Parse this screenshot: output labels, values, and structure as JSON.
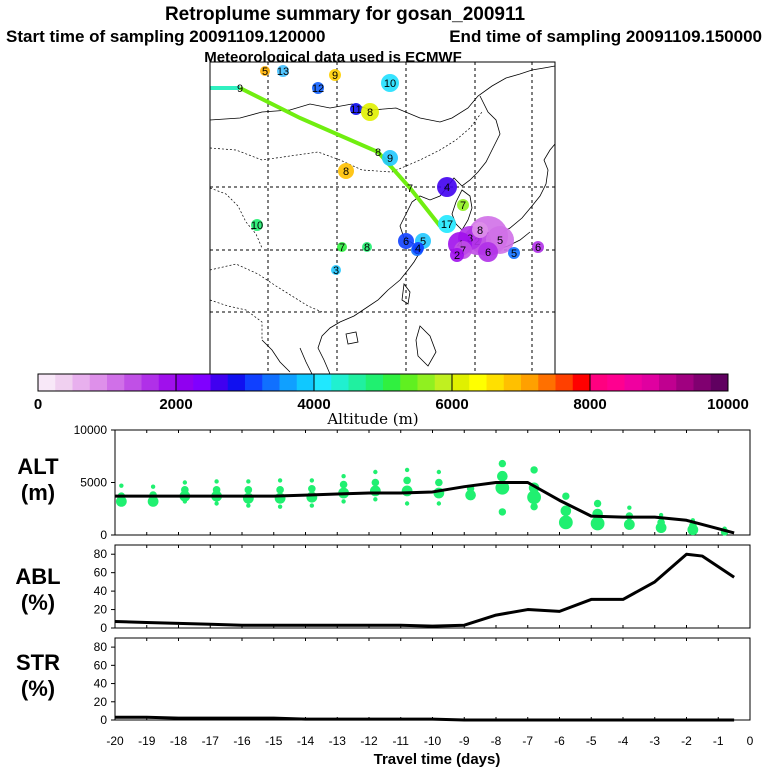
{
  "header": {
    "title": "Retroplume summary for gosan_200911",
    "start_label": "Start time of sampling 20091109.120000",
    "end_label": "End time of sampling 20091109.150000",
    "meteo_label": "Meteorological data used is ECMWF"
  },
  "colorbar": {
    "label": "Altitude (m)",
    "min": 0,
    "max": 10000,
    "ticks": [
      "0",
      "2000",
      "4000",
      "6000",
      "8000",
      "10000"
    ],
    "colors": [
      "#f8e8f8",
      "#f0d0f0",
      "#e8b0ee",
      "#de90ea",
      "#d070e8",
      "#c050e6",
      "#b030e8",
      "#a010ec",
      "#9000f0",
      "#8000ff",
      "#4000f0",
      "#1010f0",
      "#1040ff",
      "#1070ff",
      "#10a0ff",
      "#10c8ff",
      "#20e8ff",
      "#20f0d0",
      "#20f0a0",
      "#20f070",
      "#30f040",
      "#60f020",
      "#90f020",
      "#c0f020",
      "#e0f000",
      "#ffff00",
      "#ffe000",
      "#ffc000",
      "#ffa000",
      "#ff7000",
      "#ff4000",
      "#ff0000",
      "#ff0080",
      "#ff0090",
      "#f000a0",
      "#e000a0",
      "#c00090",
      "#a00080",
      "#800070",
      "#600060"
    ]
  },
  "map": {
    "trajectory_labels": [
      "9",
      "8",
      "7"
    ],
    "markers": [
      {
        "label": "5",
        "color": "#ffb000"
      },
      {
        "label": "13",
        "color": "#40c0ff"
      },
      {
        "label": "9",
        "color": "#ffd000"
      },
      {
        "label": "10",
        "color": "#20e0ff"
      },
      {
        "label": "12",
        "color": "#1060ff"
      },
      {
        "label": "11",
        "color": "#1010f0"
      },
      {
        "label": "8",
        "color": "#e0f000"
      },
      {
        "label": "9",
        "color": "#20c8ff"
      },
      {
        "label": "8",
        "color": "#ffc000"
      },
      {
        "label": "10",
        "color": "#20f070"
      },
      {
        "label": "7",
        "color": "#30f040"
      },
      {
        "label": "8",
        "color": "#20f070"
      },
      {
        "label": "6",
        "color": "#1070ff"
      },
      {
        "label": "5",
        "color": "#20c8ff"
      },
      {
        "label": "6",
        "color": "#1040ff"
      },
      {
        "label": "3",
        "color": "#20c8ff"
      },
      {
        "label": "4",
        "color": "#4000f0"
      },
      {
        "label": "7",
        "color": "#90f020"
      },
      {
        "label": "17",
        "color": "#20e8ff"
      },
      {
        "label": "1",
        "color": "#d070e8"
      },
      {
        "label": "2",
        "color": "#c050e6"
      },
      {
        "label": "3",
        "color": "#b030e8"
      },
      {
        "label": "4",
        "color": "#a010ec"
      },
      {
        "label": "5",
        "color": "#d070e8"
      },
      {
        "label": "6",
        "color": "#b030e8"
      },
      {
        "label": "7",
        "color": "#c050e6"
      },
      {
        "label": "8",
        "color": "#de90ea"
      },
      {
        "label": "2",
        "color": "#a010ec"
      },
      {
        "label": "4",
        "color": "#1040ff"
      },
      {
        "label": "5",
        "color": "#1070ff"
      },
      {
        "label": "6",
        "color": "#b030e8"
      }
    ]
  },
  "chart_data": [
    {
      "type": "line",
      "title": "ALT",
      "ylabel": "ALT (m)",
      "ylim": [
        0,
        10000
      ],
      "yticks": [
        "0",
        "5000",
        "10000"
      ],
      "x": [
        -20,
        -19,
        -18,
        -17,
        -16,
        -15,
        -14,
        -13,
        -12,
        -11,
        -10,
        -9,
        -8,
        -7,
        -6,
        -5,
        -4,
        -3,
        -2,
        -1,
        -0.5
      ],
      "values": [
        3700,
        3700,
        3700,
        3700,
        3700,
        3700,
        3800,
        3900,
        4000,
        4000,
        4100,
        4600,
        5000,
        5000,
        3300,
        1800,
        1700,
        1700,
        1400,
        600,
        200
      ],
      "scatter": [
        {
          "x": -19.8,
          "y": [
            4700,
            3700,
            3200
          ]
        },
        {
          "x": -18.8,
          "y": [
            4600,
            3800,
            3200
          ]
        },
        {
          "x": -17.8,
          "y": [
            5000,
            4300,
            3700,
            3200
          ]
        },
        {
          "x": -16.8,
          "y": [
            5100,
            4300,
            3700,
            3000
          ]
        },
        {
          "x": -15.8,
          "y": [
            5100,
            4300,
            3500,
            2800
          ]
        },
        {
          "x": -14.8,
          "y": [
            5200,
            4300,
            3500,
            2700
          ]
        },
        {
          "x": -13.8,
          "y": [
            5200,
            4400,
            3600,
            2800
          ]
        },
        {
          "x": -12.8,
          "y": [
            5600,
            4800,
            4000,
            3200
          ]
        },
        {
          "x": -11.8,
          "y": [
            6000,
            5000,
            4200,
            3400
          ]
        },
        {
          "x": -10.8,
          "y": [
            6200,
            5200,
            4200,
            3000
          ]
        },
        {
          "x": -9.8,
          "y": [
            6000,
            5000,
            4000,
            3000
          ]
        },
        {
          "x": -8.8,
          "y": [
            4400,
            3800
          ]
        },
        {
          "x": -7.8,
          "y": [
            6800,
            5600,
            4500,
            2200
          ]
        },
        {
          "x": -6.8,
          "y": [
            6200,
            4500,
            3600,
            2700
          ]
        },
        {
          "x": -5.8,
          "y": [
            3700,
            2300,
            1200
          ]
        },
        {
          "x": -4.8,
          "y": [
            3000,
            2000,
            1100
          ]
        },
        {
          "x": -3.8,
          "y": [
            2600,
            1800,
            1000
          ]
        },
        {
          "x": -2.8,
          "y": [
            1900,
            1200,
            700
          ]
        },
        {
          "x": -1.8,
          "y": [
            1400,
            900,
            500
          ]
        },
        {
          "x": -0.8,
          "y": [
            600,
            300
          ]
        }
      ]
    },
    {
      "type": "line",
      "title": "ABL",
      "ylabel": "ABL (%)",
      "ylim": [
        0,
        90
      ],
      "yticks": [
        "0",
        "20",
        "40",
        "60",
        "80"
      ],
      "x": [
        -20,
        -19,
        -18,
        -17,
        -16,
        -15,
        -14,
        -13,
        -12,
        -11,
        -10,
        -9,
        -8,
        -7,
        -6,
        -5,
        -4,
        -3,
        -2,
        -1.5,
        -0.5
      ],
      "values": [
        7,
        6,
        5,
        4,
        3,
        3,
        3,
        3,
        3,
        3,
        2,
        3,
        14,
        20,
        18,
        31,
        31,
        50,
        80,
        78,
        55
      ]
    },
    {
      "type": "line",
      "title": "STR",
      "ylabel": "STR (%)",
      "ylim": [
        0,
        90
      ],
      "yticks": [
        "0",
        "20",
        "40",
        "60",
        "80"
      ],
      "x": [
        -20,
        -19,
        -18,
        -17,
        -16,
        -15,
        -14,
        -13,
        -12,
        -11,
        -10,
        -9,
        -8,
        -7,
        -6,
        -5,
        -4,
        -3,
        -2,
        -1,
        -0.5
      ],
      "values": [
        3,
        3,
        2,
        2,
        2,
        2,
        1,
        1,
        1,
        1,
        1,
        0,
        0,
        0,
        0,
        0,
        0,
        0,
        0,
        0,
        0
      ]
    }
  ],
  "xaxis": {
    "label": "Travel time (days)",
    "ticks": [
      "-20",
      "-19",
      "-18",
      "-17",
      "-16",
      "-15",
      "-14",
      "-13",
      "-12",
      "-11",
      "-10",
      "-9",
      "-8",
      "-7",
      "-6",
      "-5",
      "-4",
      "-3",
      "-2",
      "-1",
      "0"
    ]
  },
  "panels": {
    "alt": {
      "name": "ALT",
      "unit": "(m)"
    },
    "abl": {
      "name": "ABL",
      "unit": "(%)"
    },
    "str": {
      "name": "STR",
      "unit": "(%)"
    }
  },
  "colors": {
    "scatter": "#20f070",
    "trajectory": "#70ee10",
    "trajectory_start": "#30f0c0",
    "line": "#000000"
  }
}
